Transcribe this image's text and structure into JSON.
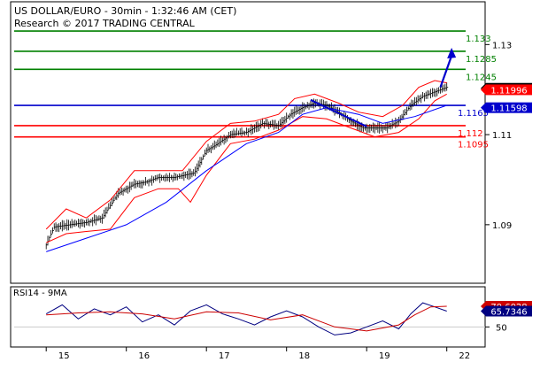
{
  "header": {
    "title": "US DOLLAR/EURO - 30min - 1:32:46 AM (CET)",
    "subtitle": "Research © 2017 TRADING CENTRAL"
  },
  "colors": {
    "resistance": "#008000",
    "support": "#ff0000",
    "pivot": "#0000cc",
    "price_bars": "#000000",
    "bollinger": "#ff0000",
    "moving_average": "#0000ff",
    "forecast_arrow": "#0000cc",
    "rsi_line": "#000080",
    "rsi_ma": "#cc0000"
  },
  "chart_data": [
    {
      "type": "line",
      "pane": "price",
      "instrument": "US DOLLAR/EURO",
      "timeframe": "30min",
      "ylim": [
        1.077,
        1.1395
      ],
      "y_ticks": [
        1.09,
        1.11,
        1.13
      ],
      "x_ticks": [
        "15",
        "16",
        "17",
        "18",
        "19",
        "22"
      ],
      "current_price": {
        "label": "1.12029",
        "value": 1.12029
      },
      "level_badges": [
        {
          "label": "1.11996",
          "value": 1.11996,
          "color": "#ff0000"
        },
        {
          "label": "1.11598",
          "value": 1.11598,
          "color": "#0000cc"
        }
      ],
      "horizontal_levels": [
        {
          "label": "1.133",
          "value": 1.133,
          "kind": "resistance",
          "color": "#008000"
        },
        {
          "label": "1.1285",
          "value": 1.1285,
          "kind": "resistance",
          "color": "#008000"
        },
        {
          "label": "1.1245",
          "value": 1.1245,
          "kind": "resistance",
          "color": "#008000"
        },
        {
          "label": "1.1165",
          "value": 1.1165,
          "kind": "pivot",
          "color": "#0000cc"
        },
        {
          "label": "1.112",
          "value": 1.112,
          "kind": "support",
          "color": "#ff0000"
        },
        {
          "label": "1.1095",
          "value": 1.1095,
          "kind": "support",
          "color": "#ff0000"
        }
      ],
      "x_range": [
        0,
        5.3
      ],
      "price_path": [
        [
          0.0,
          1.0855
        ],
        [
          0.1,
          1.0895
        ],
        [
          0.3,
          1.09
        ],
        [
          0.5,
          1.0905
        ],
        [
          0.7,
          1.0915
        ],
        [
          0.9,
          1.097
        ],
        [
          1.1,
          1.099
        ],
        [
          1.25,
          1.0995
        ],
        [
          1.4,
          1.1005
        ],
        [
          1.6,
          1.1005
        ],
        [
          1.85,
          1.1015
        ],
        [
          2.0,
          1.1065
        ],
        [
          2.1,
          1.1075
        ],
        [
          2.3,
          1.11
        ],
        [
          2.5,
          1.1105
        ],
        [
          2.7,
          1.1125
        ],
        [
          2.9,
          1.112
        ],
        [
          3.05,
          1.1145
        ],
        [
          3.2,
          1.116
        ],
        [
          3.35,
          1.117
        ],
        [
          3.5,
          1.1165
        ],
        [
          3.65,
          1.115
        ],
        [
          3.8,
          1.113
        ],
        [
          3.95,
          1.1115
        ],
        [
          4.1,
          1.1115
        ],
        [
          4.25,
          1.1115
        ],
        [
          4.4,
          1.113
        ],
        [
          4.55,
          1.1165
        ],
        [
          4.7,
          1.1185
        ],
        [
          4.85,
          1.1195
        ],
        [
          5.0,
          1.1205
        ]
      ],
      "moving_average": [
        [
          0.0,
          1.084
        ],
        [
          0.5,
          1.087
        ],
        [
          1.0,
          1.09
        ],
        [
          1.5,
          1.095
        ],
        [
          2.0,
          1.102
        ],
        [
          2.5,
          1.108
        ],
        [
          2.9,
          1.1105
        ],
        [
          3.2,
          1.1145
        ],
        [
          3.5,
          1.116
        ],
        [
          3.9,
          1.1145
        ],
        [
          4.2,
          1.1125
        ],
        [
          4.6,
          1.114
        ],
        [
          5.0,
          1.1165
        ]
      ],
      "bollinger_upper": [
        [
          0.0,
          1.089
        ],
        [
          0.25,
          1.0935
        ],
        [
          0.5,
          1.0915
        ],
        [
          0.8,
          1.0955
        ],
        [
          1.1,
          1.102
        ],
        [
          1.4,
          1.102
        ],
        [
          1.7,
          1.102
        ],
        [
          2.0,
          1.1085
        ],
        [
          2.3,
          1.1125
        ],
        [
          2.6,
          1.113
        ],
        [
          2.9,
          1.1145
        ],
        [
          3.1,
          1.118
        ],
        [
          3.35,
          1.119
        ],
        [
          3.65,
          1.117
        ],
        [
          3.9,
          1.115
        ],
        [
          4.2,
          1.114
        ],
        [
          4.45,
          1.1165
        ],
        [
          4.65,
          1.1205
        ],
        [
          4.85,
          1.122
        ],
        [
          5.0,
          1.1215
        ]
      ],
      "bollinger_lower": [
        [
          0.0,
          1.086
        ],
        [
          0.25,
          1.088
        ],
        [
          0.5,
          1.0885
        ],
        [
          0.8,
          1.089
        ],
        [
          1.1,
          1.096
        ],
        [
          1.4,
          1.098
        ],
        [
          1.65,
          1.098
        ],
        [
          1.8,
          1.095
        ],
        [
          2.0,
          1.101
        ],
        [
          2.3,
          1.108
        ],
        [
          2.6,
          1.109
        ],
        [
          2.9,
          1.111
        ],
        [
          3.2,
          1.114
        ],
        [
          3.5,
          1.1135
        ],
        [
          3.8,
          1.1115
        ],
        [
          4.1,
          1.1095
        ],
        [
          4.4,
          1.1105
        ],
        [
          4.65,
          1.1135
        ],
        [
          4.85,
          1.1175
        ],
        [
          5.0,
          1.119
        ]
      ],
      "trendline": [
        [
          3.3,
          1.1177
        ],
        [
          4.0,
          1.1118
        ]
      ],
      "forecast_arrow": [
        [
          4.92,
          1.1205
        ],
        [
          5.06,
          1.1283
        ]
      ]
    },
    {
      "type": "line",
      "pane": "indicator",
      "title": "RSI14 - 9MA",
      "ylim": [
        30,
        90
      ],
      "y_ticks": [
        50
      ],
      "series": [
        {
          "name": "RSI14",
          "values": [
            [
              0.0,
              63
            ],
            [
              0.2,
              72
            ],
            [
              0.4,
              58
            ],
            [
              0.6,
              68
            ],
            [
              0.8,
              62
            ],
            [
              1.0,
              70
            ],
            [
              1.2,
              55
            ],
            [
              1.4,
              62
            ],
            [
              1.6,
              52
            ],
            [
              1.8,
              66
            ],
            [
              2.0,
              72
            ],
            [
              2.2,
              63
            ],
            [
              2.4,
              58
            ],
            [
              2.6,
              52
            ],
            [
              2.8,
              60
            ],
            [
              3.0,
              66
            ],
            [
              3.2,
              60
            ],
            [
              3.4,
              50
            ],
            [
              3.6,
              42
            ],
            [
              3.8,
              44
            ],
            [
              4.0,
              50
            ],
            [
              4.2,
              56
            ],
            [
              4.4,
              48
            ],
            [
              4.55,
              63
            ],
            [
              4.7,
              74
            ],
            [
              4.85,
              70
            ],
            [
              5.0,
              65.7346
            ]
          ]
        },
        {
          "name": "9MA",
          "values": [
            [
              0.0,
              62
            ],
            [
              0.4,
              64
            ],
            [
              0.8,
              65
            ],
            [
              1.2,
              63
            ],
            [
              1.6,
              58
            ],
            [
              2.0,
              65
            ],
            [
              2.4,
              64
            ],
            [
              2.8,
              57
            ],
            [
              3.2,
              62
            ],
            [
              3.6,
              50
            ],
            [
              4.0,
              46
            ],
            [
              4.4,
              52
            ],
            [
              4.6,
              62
            ],
            [
              4.8,
              70
            ],
            [
              5.0,
              70.6028
            ]
          ]
        }
      ],
      "value_badges": [
        {
          "label": "70.6028",
          "value": 70.6028,
          "color": "#cc0000"
        },
        {
          "label": "65.7346",
          "value": 65.7346,
          "color": "#000080"
        }
      ]
    }
  ]
}
